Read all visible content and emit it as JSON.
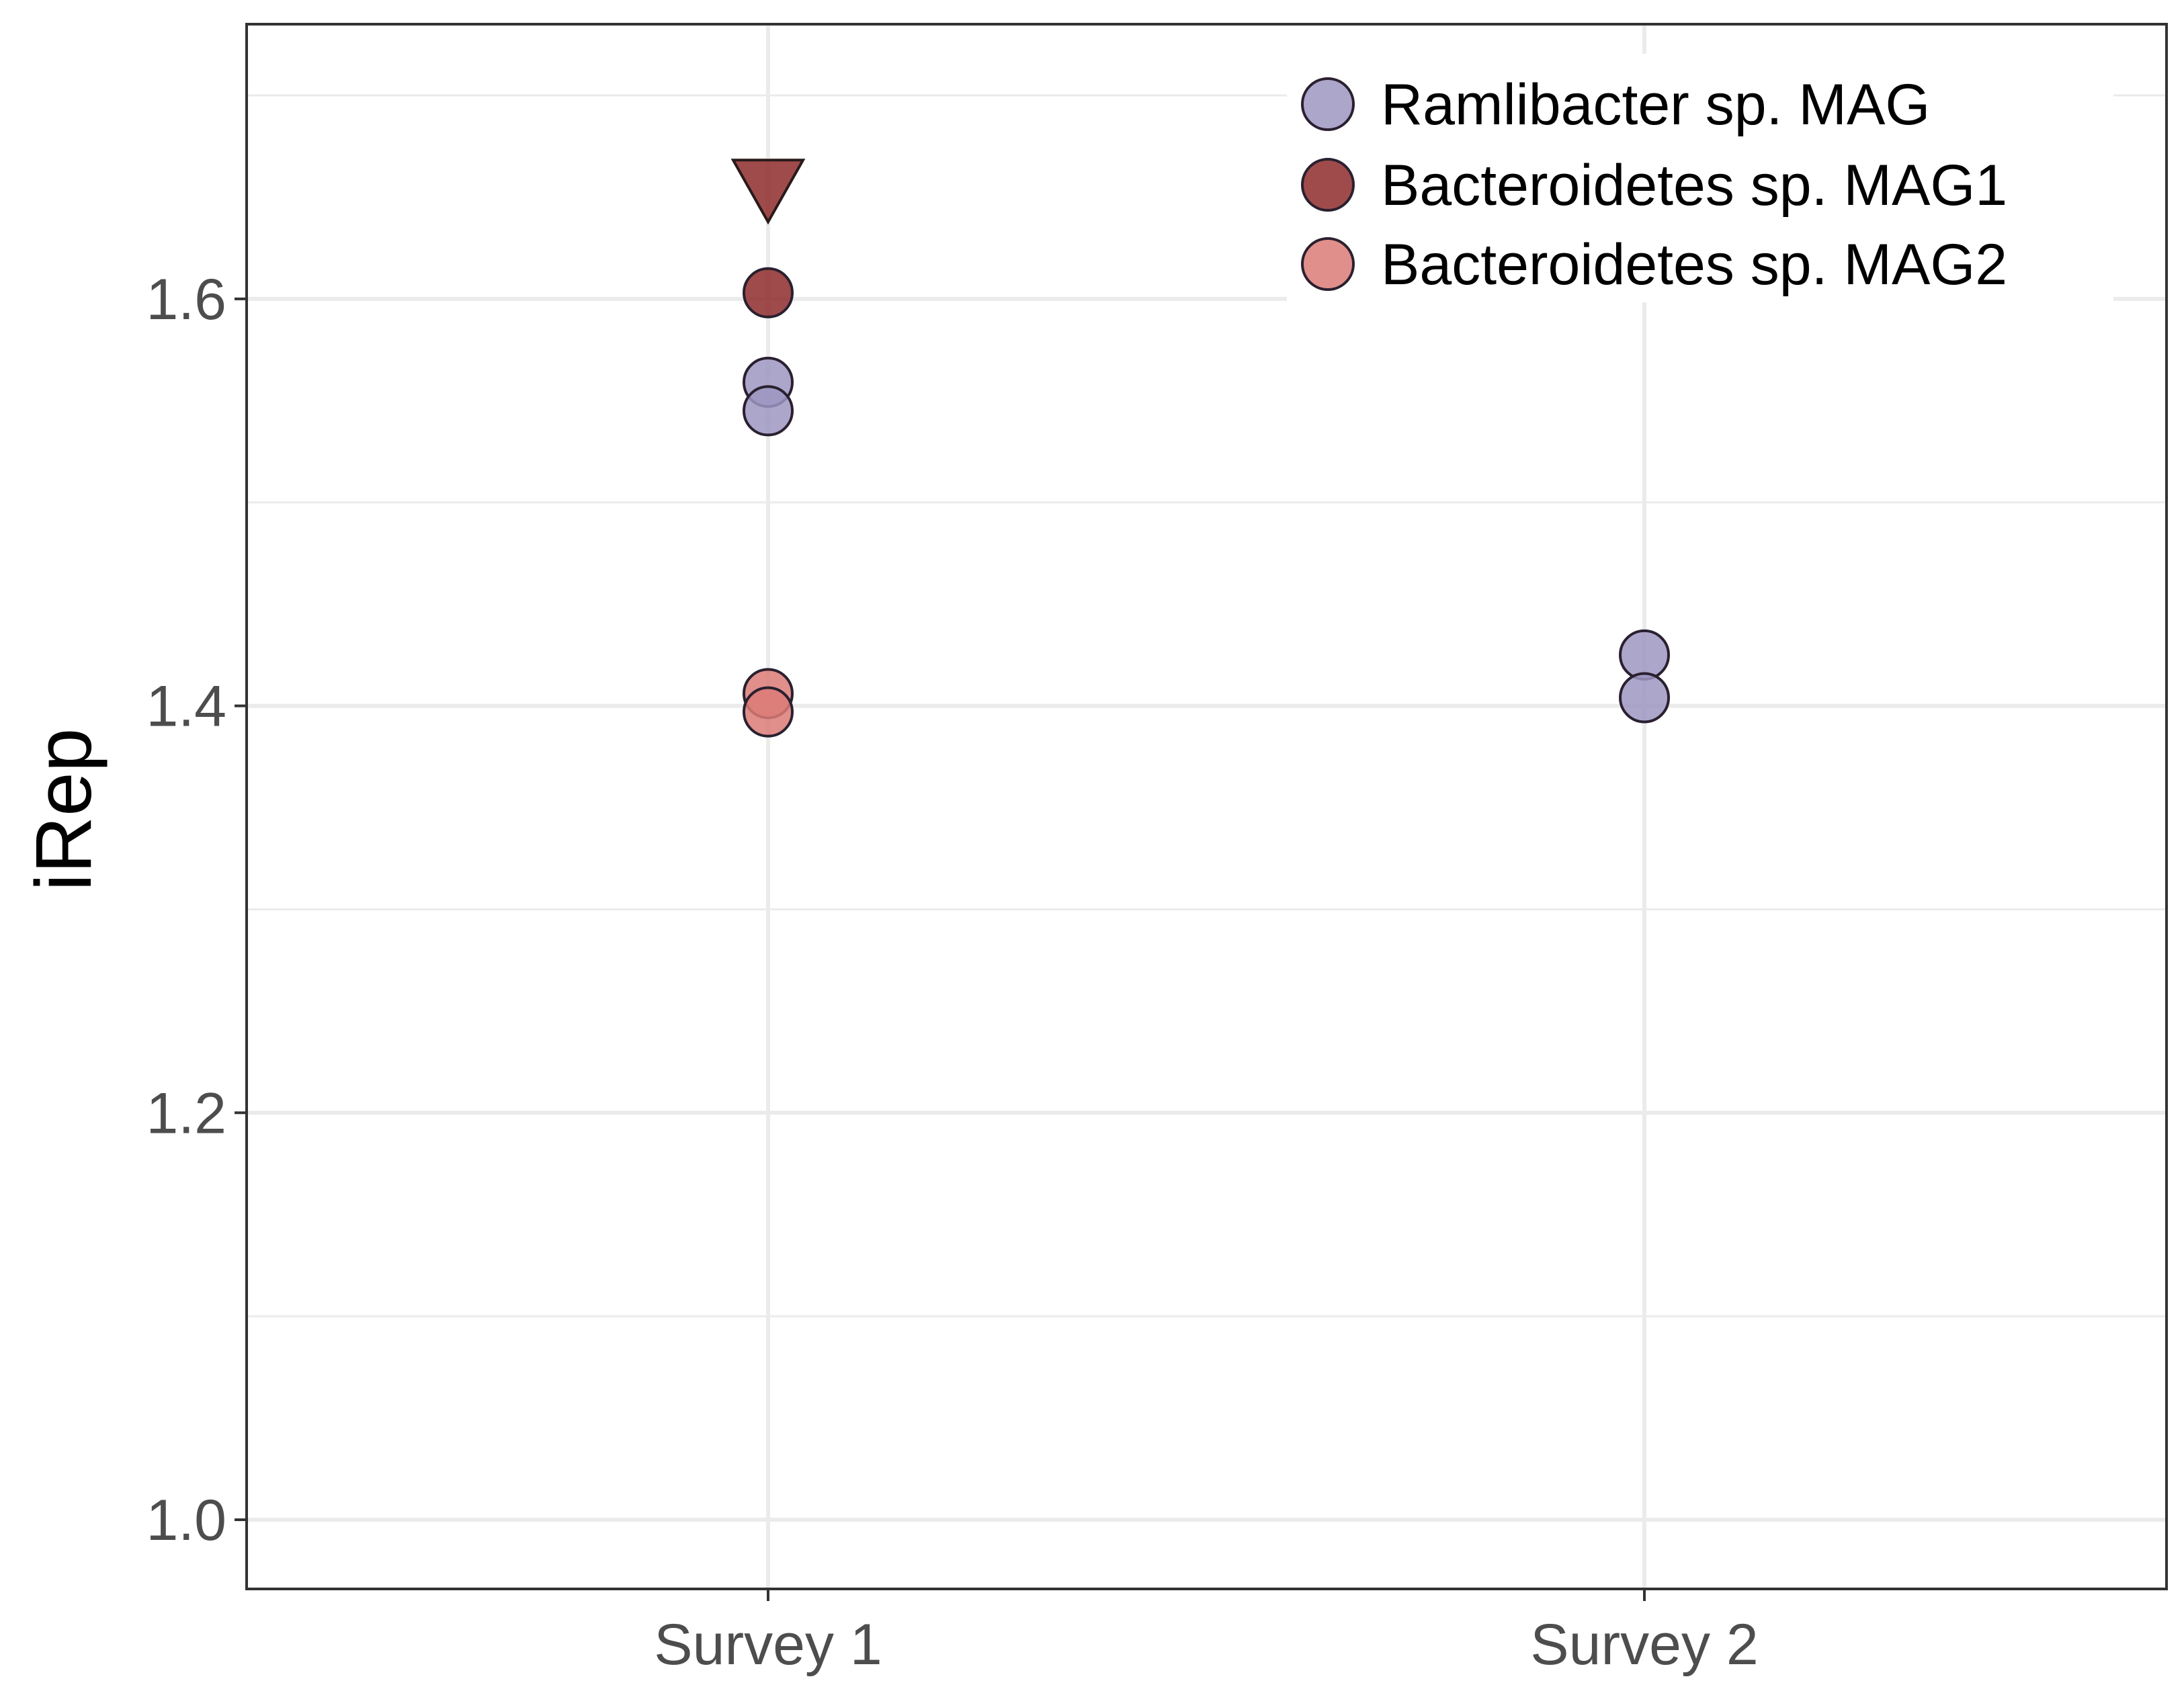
{
  "chart_data": {
    "type": "scatter",
    "xlabel": "",
    "ylabel": "iRep",
    "categories": [
      "Survey 1",
      "Survey 2"
    ],
    "ylim": [
      0.966,
      1.735
    ],
    "yticks": [
      "1.0",
      "1.2",
      "1.4",
      "1.6"
    ],
    "ytick_values": [
      1.0,
      1.2,
      1.4,
      1.6
    ],
    "grid": true,
    "legend_position": "top-right",
    "series": [
      {
        "name": "Ramlibacter sp. MAG",
        "color": "#9d97c2",
        "points": [
          {
            "x": "Survey 1",
            "y": 1.559
          },
          {
            "x": "Survey 1",
            "y": 1.545
          },
          {
            "x": "Survey 2",
            "y": 1.425
          },
          {
            "x": "Survey 2",
            "y": 1.404
          }
        ]
      },
      {
        "name": "Bacteroidetes sp. MAG1",
        "color": "#8e2b2b",
        "points": [
          {
            "x": "Survey 1",
            "y": 1.603
          },
          {
            "x": "Survey 1",
            "y": 1.655,
            "shape": "triangle-down"
          }
        ]
      },
      {
        "name": "Bacteroidetes sp. MAG2",
        "color": "#dc7b77",
        "points": [
          {
            "x": "Survey 1",
            "y": 1.406
          },
          {
            "x": "Survey 1",
            "y": 1.397
          }
        ]
      }
    ]
  }
}
